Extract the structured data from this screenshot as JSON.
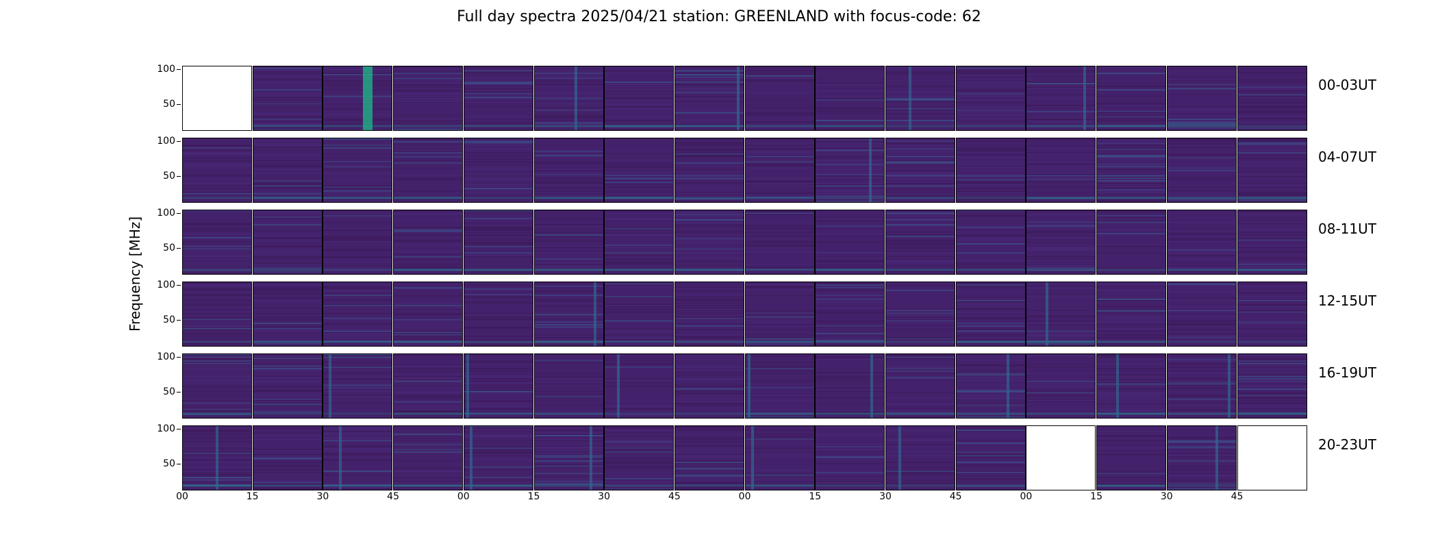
{
  "chart_data": {
    "type": "heatmap",
    "title": "Full day spectra 2025/04/21 station: GREENLAND with focus-code: 62",
    "ylabel": "Frequency [MHz]",
    "yticks": [
      "100",
      "50"
    ],
    "ylim": [
      10,
      105
    ],
    "xticks": [
      "00",
      "15",
      "30",
      "45",
      "00",
      "15",
      "30",
      "45",
      "00",
      "15",
      "30",
      "45",
      "00",
      "15",
      "30",
      "45"
    ],
    "colormap": "viridis",
    "rows": [
      {
        "label": "00-03UT",
        "panels": [
          {
            "missing": true
          },
          {
            "burst": null
          },
          {
            "burst": 0.65,
            "strong": true
          },
          {
            "burst": null
          },
          {
            "burst": null
          },
          {
            "burst": 0.6
          },
          {
            "burst": null
          },
          {
            "burst": 0.92
          },
          {
            "burst": null
          },
          {
            "burst": null
          },
          {
            "burst": 0.35
          },
          {
            "burst": null
          },
          {
            "burst": 0.85
          },
          {
            "burst": null
          },
          {
            "burst": null
          },
          {
            "burst": null
          }
        ]
      },
      {
        "label": "04-07UT",
        "panels": [
          {
            "burst": null
          },
          {
            "burst": null
          },
          {
            "burst": null
          },
          {
            "burst": null
          },
          {
            "burst": null
          },
          {
            "burst": null
          },
          {
            "burst": null
          },
          {
            "burst": null
          },
          {
            "burst": null
          },
          {
            "burst": 0.8
          },
          {
            "burst": null
          },
          {
            "burst": null
          },
          {
            "burst": null
          },
          {
            "burst": null
          },
          {
            "burst": null
          },
          {
            "burst": null
          }
        ]
      },
      {
        "label": "08-11UT",
        "panels": [
          {
            "burst": null
          },
          {
            "burst": null
          },
          {
            "burst": null
          },
          {
            "burst": null
          },
          {
            "burst": null
          },
          {
            "burst": null
          },
          {
            "burst": null
          },
          {
            "burst": null
          },
          {
            "burst": null
          },
          {
            "burst": null
          },
          {
            "burst": null
          },
          {
            "burst": null
          },
          {
            "burst": null
          },
          {
            "burst": null
          },
          {
            "burst": null
          },
          {
            "burst": null
          }
        ]
      },
      {
        "label": "12-15UT",
        "panels": [
          {
            "burst": null
          },
          {
            "burst": null
          },
          {
            "burst": null
          },
          {
            "burst": null
          },
          {
            "burst": null
          },
          {
            "burst": 0.88
          },
          {
            "burst": null
          },
          {
            "burst": null
          },
          {
            "burst": null
          },
          {
            "burst": null
          },
          {
            "burst": null
          },
          {
            "burst": null
          },
          {
            "burst": 0.3
          },
          {
            "burst": null
          },
          {
            "burst": null
          },
          {
            "burst": null
          }
        ]
      },
      {
        "label": "16-19UT",
        "panels": [
          {
            "burst": null
          },
          {
            "burst": null
          },
          {
            "burst": 0.1
          },
          {
            "burst": null
          },
          {
            "burst": 0.05
          },
          {
            "burst": null
          },
          {
            "burst": 0.2
          },
          {
            "burst": null
          },
          {
            "burst": 0.05
          },
          {
            "burst": 0.82
          },
          {
            "burst": null
          },
          {
            "burst": 0.75
          },
          {
            "burst": null
          },
          {
            "burst": 0.3
          },
          {
            "burst": 0.9
          },
          {
            "burst": null
          }
        ]
      },
      {
        "label": "20-23UT",
        "panels": [
          {
            "burst": 0.5
          },
          {
            "burst": null
          },
          {
            "burst": 0.25
          },
          {
            "burst": null
          },
          {
            "burst": 0.1
          },
          {
            "burst": 0.82
          },
          {
            "burst": null
          },
          {
            "burst": null
          },
          {
            "burst": 0.1
          },
          {
            "burst": null
          },
          {
            "burst": 0.2
          },
          {
            "burst": null
          },
          {
            "missing": true
          },
          {
            "burst": null
          },
          {
            "burst": 0.72
          },
          {
            "missing": true
          }
        ]
      }
    ]
  }
}
